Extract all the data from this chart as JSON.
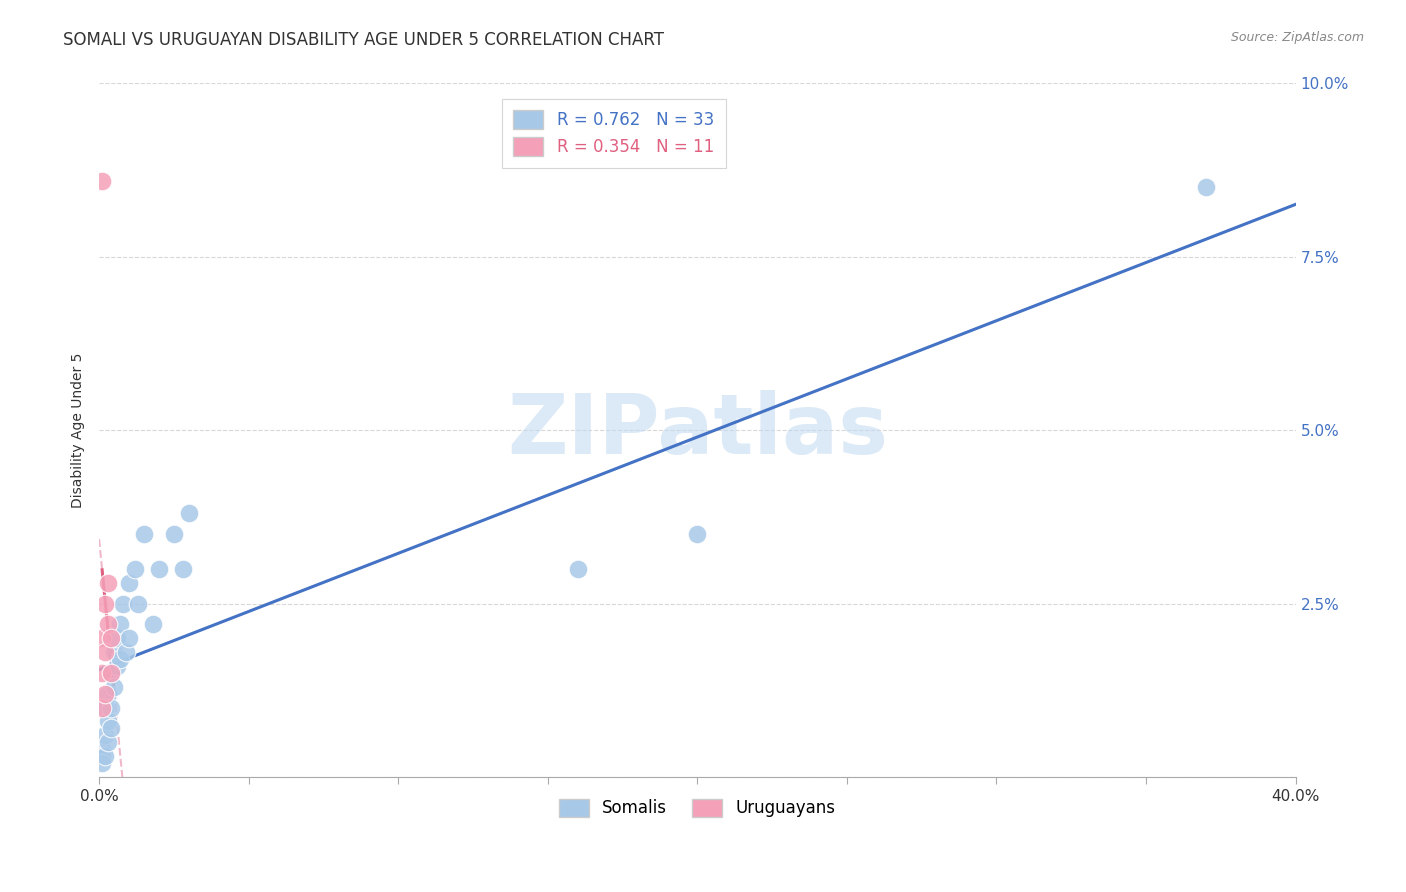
{
  "title": "SOMALI VS URUGUAYAN DISABILITY AGE UNDER 5 CORRELATION CHART",
  "source": "Source: ZipAtlas.com",
  "ylabel": "Disability Age Under 5",
  "watermark": "ZIPatlas",
  "xlim": [
    0.0,
    0.4
  ],
  "ylim": [
    0.0,
    0.1
  ],
  "xticks": [
    0.0,
    0.05,
    0.1,
    0.15,
    0.2,
    0.25,
    0.3,
    0.35,
    0.4
  ],
  "xtick_labels": [
    "0.0%",
    "",
    "",
    "",
    "",
    "",
    "",
    "",
    "40.0%"
  ],
  "yticks": [
    0.0,
    0.025,
    0.05,
    0.075,
    0.1
  ],
  "ytick_labels": [
    "",
    "2.5%",
    "5.0%",
    "7.5%",
    "10.0%"
  ],
  "somali_R": 0.762,
  "somali_N": 33,
  "uruguayan_R": 0.354,
  "uruguayan_N": 11,
  "somali_color": "#a8c8e8",
  "uruguayan_color": "#f4a0b8",
  "somali_line_color": "#4472c4",
  "uruguayan_line_color": "#e06080",
  "uruguayan_dashed_color": "#f0b8c8",
  "bg_color": "#ffffff",
  "grid_color": "#d8d8d8",
  "somali_x": [
    0.001,
    0.001,
    0.001,
    0.002,
    0.002,
    0.002,
    0.003,
    0.003,
    0.003,
    0.004,
    0.004,
    0.004,
    0.005,
    0.005,
    0.006,
    0.006,
    0.007,
    0.007,
    0.008,
    0.009,
    0.01,
    0.01,
    0.012,
    0.013,
    0.015,
    0.018,
    0.02,
    0.025,
    0.028,
    0.03,
    0.16,
    0.2,
    0.37
  ],
  "somali_y": [
    0.004,
    0.003,
    0.002,
    0.01,
    0.006,
    0.003,
    0.012,
    0.008,
    0.005,
    0.015,
    0.01,
    0.007,
    0.018,
    0.013,
    0.02,
    0.016,
    0.022,
    0.017,
    0.025,
    0.018,
    0.028,
    0.02,
    0.03,
    0.025,
    0.035,
    0.022,
    0.03,
    0.035,
    0.03,
    0.038,
    0.03,
    0.035,
    0.085
  ],
  "uruguayan_x": [
    0.001,
    0.001,
    0.001,
    0.002,
    0.002,
    0.002,
    0.003,
    0.003,
    0.004,
    0.004,
    0.001
  ],
  "uruguayan_y": [
    0.01,
    0.015,
    0.02,
    0.012,
    0.018,
    0.025,
    0.022,
    0.028,
    0.015,
    0.02,
    0.086
  ],
  "title_fontsize": 12,
  "label_fontsize": 10,
  "tick_fontsize": 11,
  "source_fontsize": 9
}
